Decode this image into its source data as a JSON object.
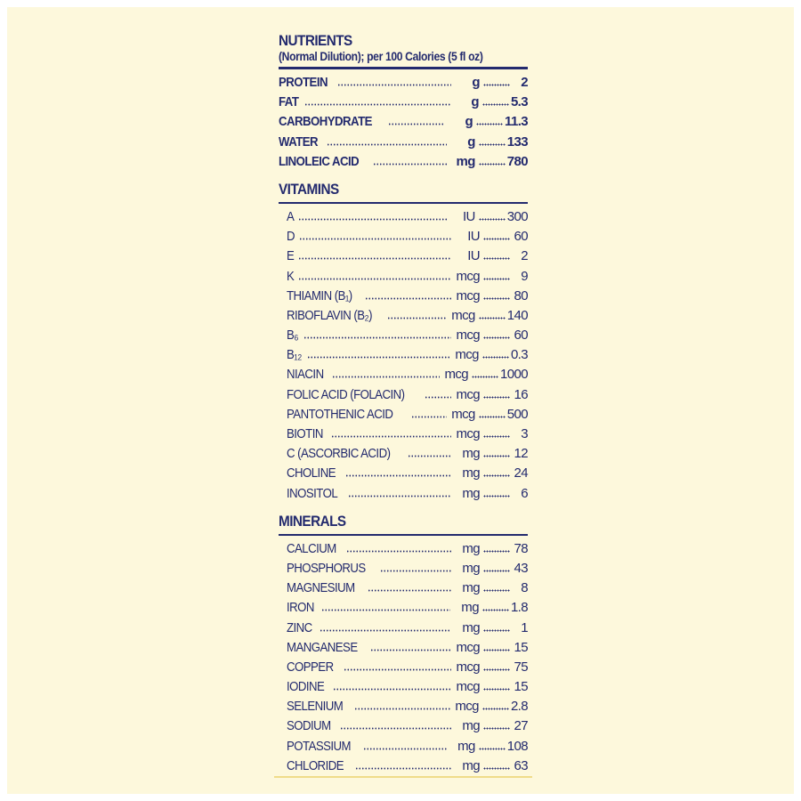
{
  "header": {
    "title": "NUTRIENTS",
    "subtitle": "(Normal Dilution); per 100 Calories (5 fl oz)"
  },
  "nutrients": [
    [
      "PROTEIN",
      "g",
      "2"
    ],
    [
      "FAT",
      "g",
      "5.3"
    ],
    [
      "CARBOHYDRATE",
      "g",
      "11.3"
    ],
    [
      "WATER",
      "g",
      "133"
    ],
    [
      "LINOLEIC ACID",
      "mg",
      "780"
    ]
  ],
  "vitamins": {
    "title": "VITAMINS",
    "rows": [
      [
        "A",
        "IU",
        "300"
      ],
      [
        "D",
        "IU",
        "60"
      ],
      [
        "E",
        "IU",
        "2"
      ],
      [
        "K",
        "mcg",
        "9"
      ],
      [
        "THIAMIN (B₁)",
        "mcg",
        "80"
      ],
      [
        "RIBOFLAVIN (B₂)",
        "mcg",
        "140"
      ],
      [
        "B₆",
        "mcg",
        "60"
      ],
      [
        "B₁₂",
        "mcg",
        "0.3"
      ],
      [
        "NIACIN",
        "mcg",
        "1000"
      ],
      [
        "FOLIC ACID (FOLACIN)",
        "mcg",
        "16"
      ],
      [
        "PANTOTHENIC ACID",
        "mcg",
        "500"
      ],
      [
        "BIOTIN",
        "mcg",
        "3"
      ],
      [
        "C (ASCORBIC ACID)",
        "mg",
        "12"
      ],
      [
        "CHOLINE",
        "mg",
        "24"
      ],
      [
        "INOSITOL",
        "mg",
        "6"
      ]
    ]
  },
  "minerals": {
    "title": "MINERALS",
    "rows": [
      [
        "CALCIUM",
        "mg",
        "78"
      ],
      [
        "PHOSPHORUS",
        "mg",
        "43"
      ],
      [
        "MAGNESIUM",
        "mg",
        "8"
      ],
      [
        "IRON",
        "mg",
        "1.8"
      ],
      [
        "ZINC",
        "mg",
        "1"
      ],
      [
        "MANGANESE",
        "mcg",
        "15"
      ],
      [
        "COPPER",
        "mcg",
        "75"
      ],
      [
        "IODINE",
        "mcg",
        "15"
      ],
      [
        "SELENIUM",
        "mcg",
        "2.8"
      ],
      [
        "SODIUM",
        "mg",
        "27"
      ],
      [
        "POTASSIUM",
        "mg",
        "108"
      ],
      [
        "CHLORIDE",
        "mg",
        "63"
      ]
    ]
  }
}
